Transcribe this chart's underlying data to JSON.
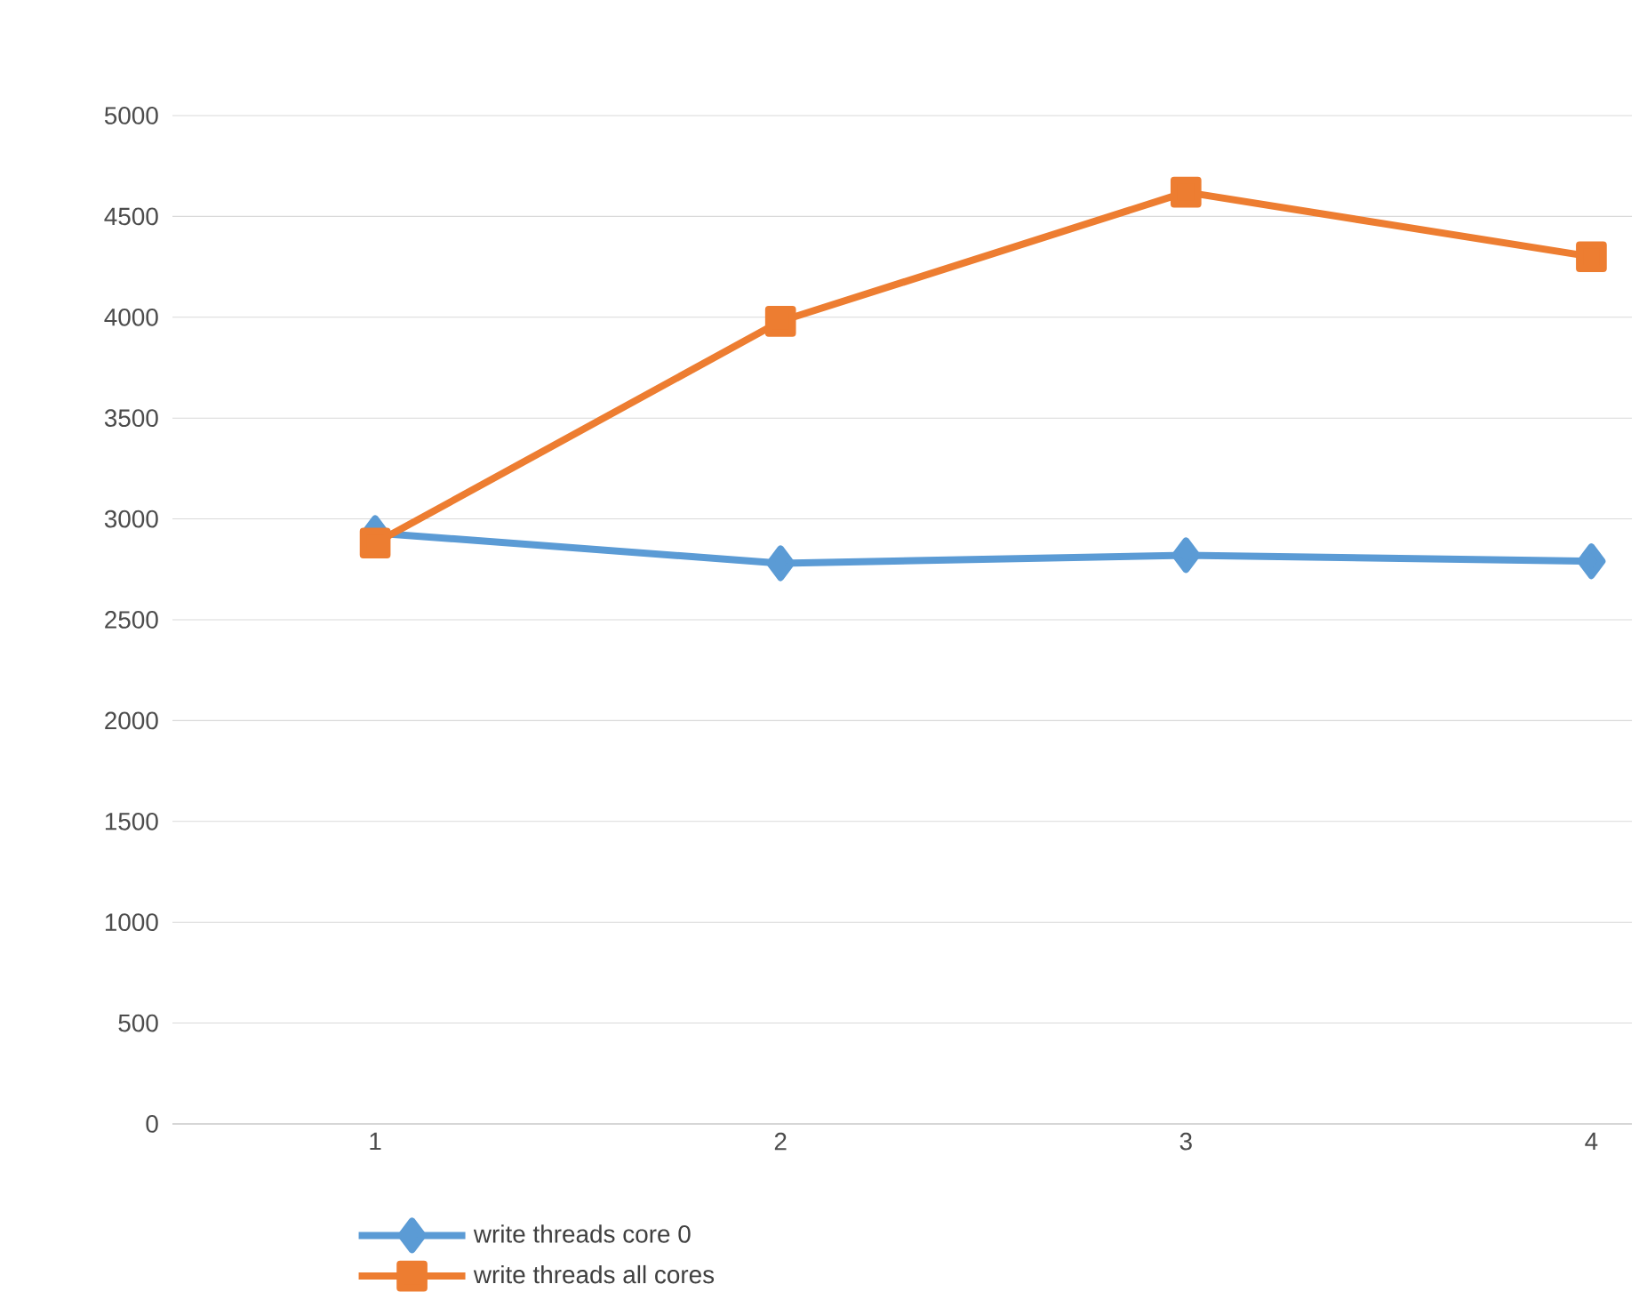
{
  "chart_data": {
    "type": "line",
    "categories": [
      "1",
      "2",
      "3",
      "4"
    ],
    "series": [
      {
        "name": "write threads core 0",
        "color": "#5b9bd5",
        "marker": "diamond",
        "values": [
          2930,
          2780,
          2820,
          2790
        ]
      },
      {
        "name": "write threads all cores",
        "color": "#ed7d31",
        "marker": "square",
        "values": [
          2880,
          3980,
          4620,
          4300
        ]
      }
    ],
    "ylim": [
      0,
      5000
    ],
    "yticks": [
      0,
      500,
      1000,
      1500,
      2000,
      2500,
      3000,
      3500,
      4000,
      4500,
      5000
    ],
    "grid": "y",
    "legend": "bottom",
    "line_style": "solid"
  }
}
